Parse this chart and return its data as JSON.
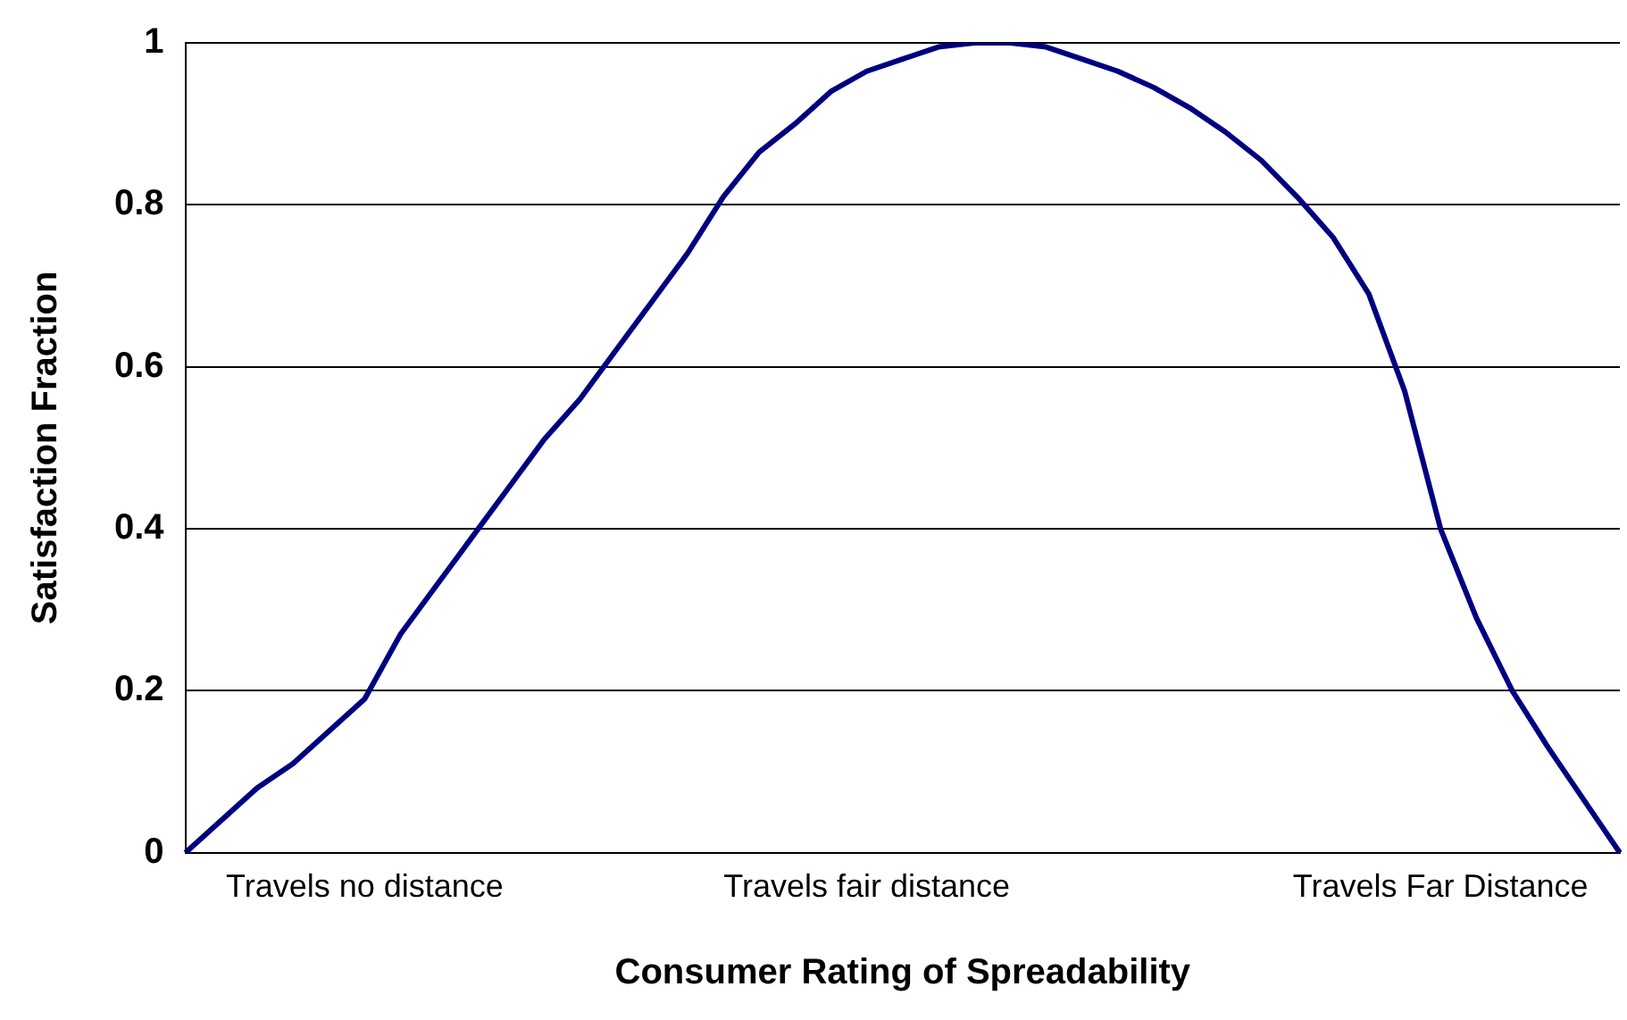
{
  "chart_data": {
    "type": "line",
    "xlabel": "Consumer Rating of Spreadability",
    "ylabel": "Satisfaction Fraction",
    "categories": [
      null,
      null,
      null,
      null,
      null,
      "Travels no distance",
      null,
      null,
      null,
      null,
      null,
      null,
      null,
      null,
      null,
      null,
      null,
      null,
      null,
      "Travels fair distance",
      null,
      null,
      null,
      null,
      null,
      null,
      null,
      null,
      null,
      null,
      null,
      null,
      null,
      null,
      null,
      "Travels Far Distance",
      null,
      null,
      null,
      null,
      null
    ],
    "series": [
      {
        "color": "#000080",
        "values": [
          0,
          0.04,
          0.08,
          0.11,
          0.15,
          0.19,
          0.27,
          0.33,
          0.39,
          0.45,
          0.51,
          0.56,
          0.62,
          0.68,
          0.74,
          0.81,
          0.865,
          0.9,
          0.94,
          0.965,
          0.98,
          0.995,
          1,
          1,
          0.995,
          0.98,
          0.965,
          0.945,
          0.92,
          0.89,
          0.855,
          0.81,
          0.76,
          0.69,
          0.57,
          0.4,
          0.29,
          0.2,
          0.13,
          0.065,
          0
        ]
      }
    ],
    "ylim": [
      0,
      1
    ],
    "yticks": [
      0,
      0.2,
      0.4,
      0.6,
      0.8,
      1
    ],
    "grid": "y",
    "legend": false,
    "marker": "none",
    "line_style": "solid"
  }
}
